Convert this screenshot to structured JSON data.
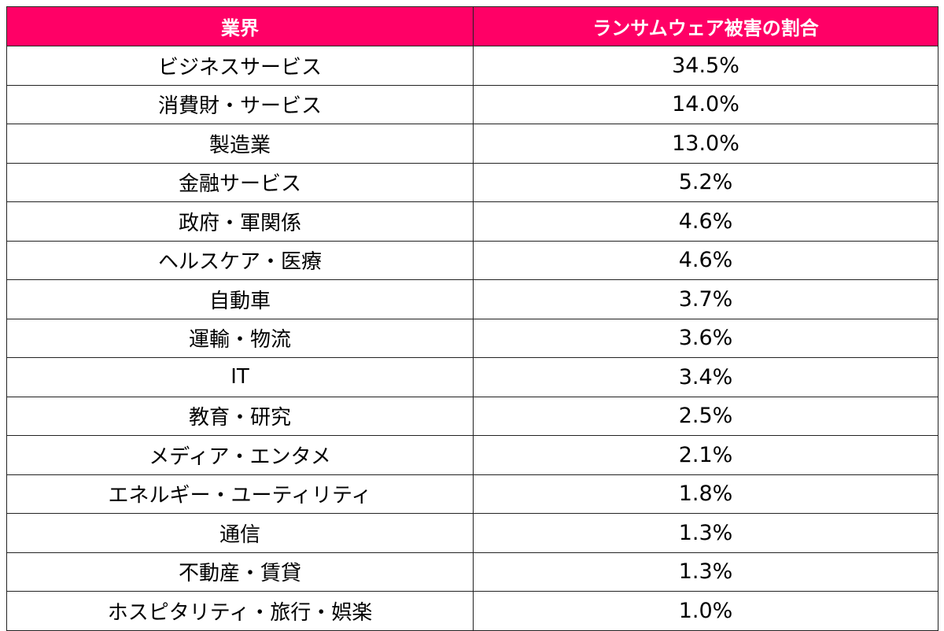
{
  "table": {
    "headers": {
      "industry": "業界",
      "share": "ランサムウェア被害の割合"
    },
    "rows": [
      {
        "industry": "ビジネスサービス",
        "share": "34.5%"
      },
      {
        "industry": "消費財・サービス",
        "share": "14.0%"
      },
      {
        "industry": "製造業",
        "share": "13.0%"
      },
      {
        "industry": "金融サービス",
        "share": "5.2%"
      },
      {
        "industry": "政府・軍関係",
        "share": "4.6%"
      },
      {
        "industry": "ヘルスケア・医療",
        "share": "4.6%"
      },
      {
        "industry": "自動車",
        "share": "3.7%"
      },
      {
        "industry": "運輸・物流",
        "share": "3.6%"
      },
      {
        "industry": "IT",
        "share": "3.4%"
      },
      {
        "industry": "教育・研究",
        "share": "2.5%"
      },
      {
        "industry": "メディア・エンタメ",
        "share": "2.1%"
      },
      {
        "industry": "エネルギー・ユーティリティ",
        "share": "1.8%"
      },
      {
        "industry": "通信",
        "share": "1.3%"
      },
      {
        "industry": "不動産・賃貸",
        "share": "1.3%"
      },
      {
        "industry": "ホスピタリティ・旅行・娯楽",
        "share": "1.0%"
      }
    ]
  },
  "colors": {
    "header_background": "#ff0066",
    "header_text": "#ffffff",
    "border": "#222222"
  }
}
